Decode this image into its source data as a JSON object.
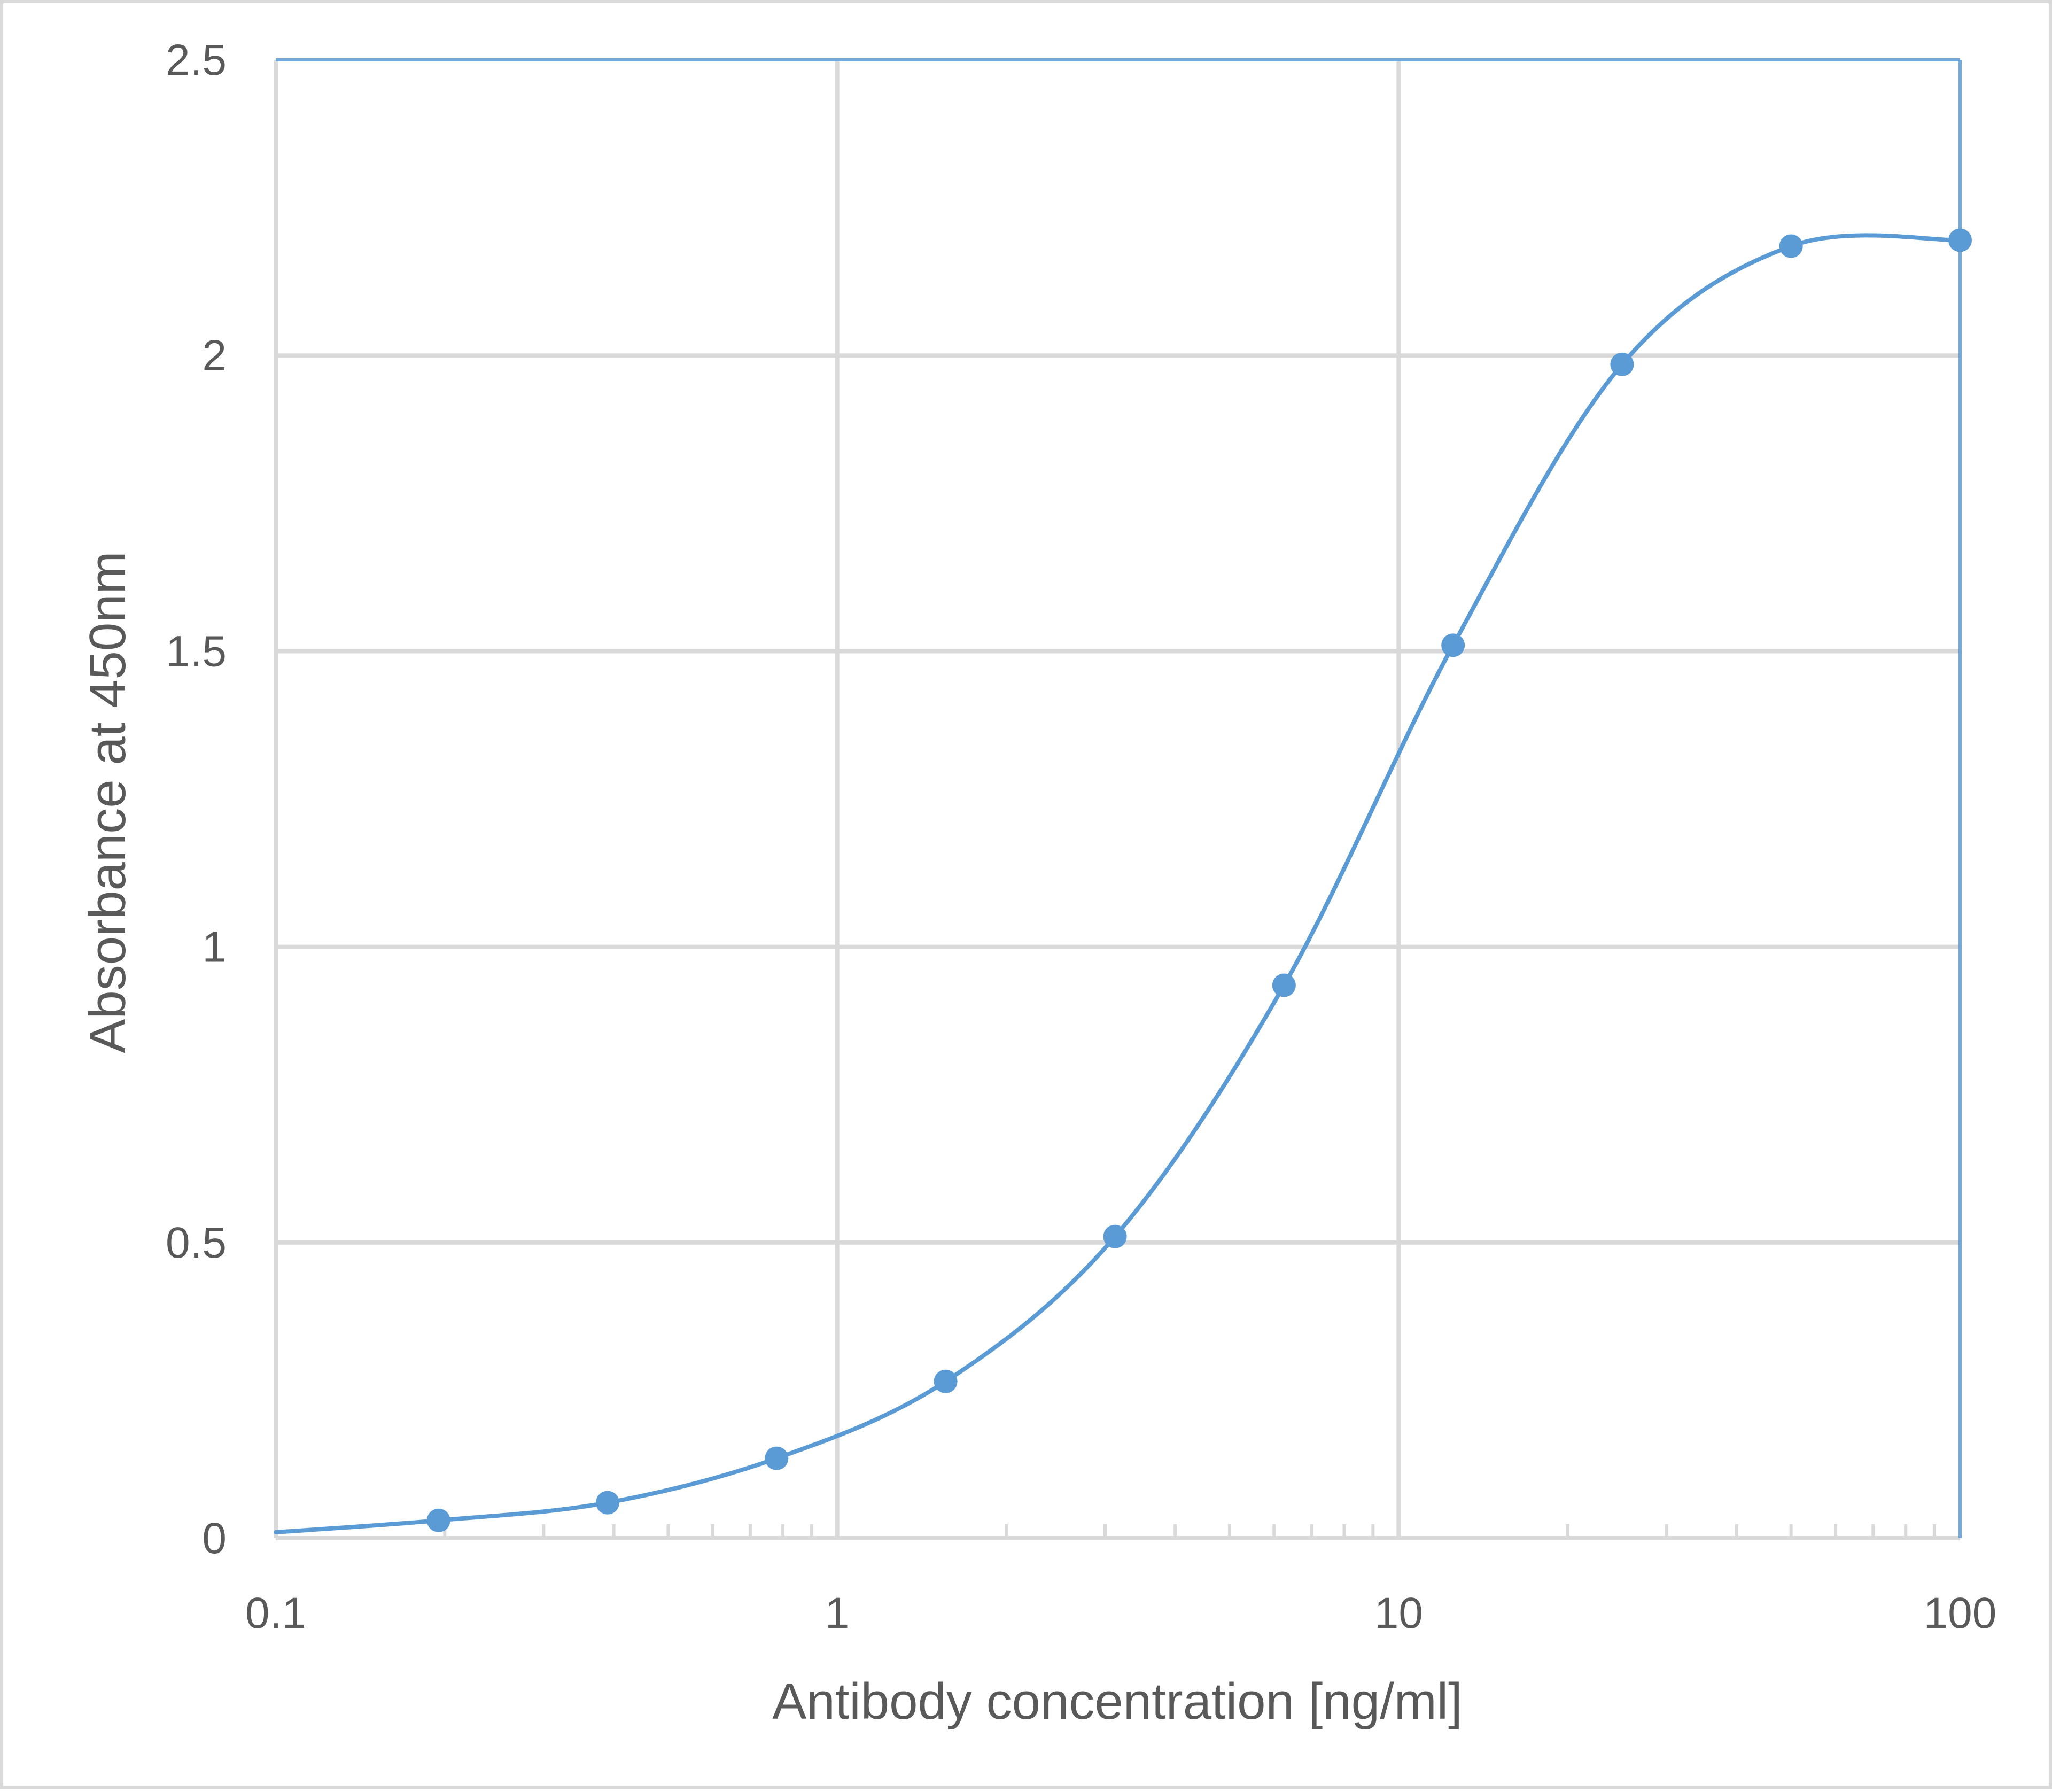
{
  "chart_data": {
    "type": "line",
    "title": "",
    "xlabel": "Antibody concentration [ng/ml]",
    "ylabel": "Absorbance at 450nm",
    "x_scale": "log",
    "xlim": [
      0.1,
      100
    ],
    "ylim": [
      0,
      2.5
    ],
    "x_ticks": [
      0.1,
      1,
      10,
      100
    ],
    "x_tick_labels": [
      "0.1",
      "1",
      "10",
      "100"
    ],
    "y_ticks": [
      0,
      0.5,
      1,
      1.5,
      2,
      2.5
    ],
    "y_tick_labels": [
      "0",
      "0.5",
      "1",
      "1.5",
      "2",
      "2.5"
    ],
    "grid": true,
    "legend": "none",
    "smooth": true,
    "series": [
      {
        "color": "#5b9bd5",
        "x": [
          0.1,
          0.195,
          0.39,
          0.78,
          1.56,
          3.125,
          6.25,
          12.5,
          25,
          50,
          100
        ],
        "y": [
          0.01,
          0.03,
          0.06,
          0.135,
          0.265,
          0.51,
          0.935,
          1.51,
          1.985,
          2.185,
          2.195
        ],
        "markers": [
          false,
          true,
          true,
          true,
          true,
          true,
          true,
          true,
          true,
          true,
          true
        ]
      }
    ],
    "colors": {
      "series": "#5b9bd5",
      "grid": "#d9d9d9",
      "text": "#595959",
      "border": "#d9d9d9"
    }
  }
}
